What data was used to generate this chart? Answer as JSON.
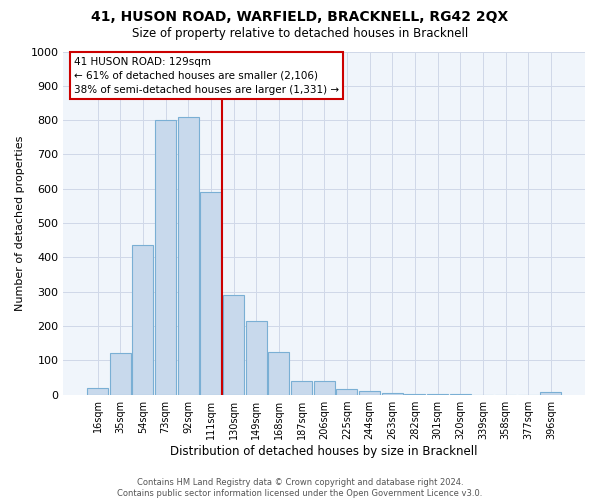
{
  "title": "41, HUSON ROAD, WARFIELD, BRACKNELL, RG42 2QX",
  "subtitle": "Size of property relative to detached houses in Bracknell",
  "xlabel": "Distribution of detached houses by size in Bracknell",
  "ylabel": "Number of detached properties",
  "bar_labels": [
    "16sqm",
    "35sqm",
    "54sqm",
    "73sqm",
    "92sqm",
    "111sqm",
    "130sqm",
    "149sqm",
    "168sqm",
    "187sqm",
    "206sqm",
    "225sqm",
    "244sqm",
    "263sqm",
    "282sqm",
    "301sqm",
    "320sqm",
    "339sqm",
    "358sqm",
    "377sqm",
    "396sqm"
  ],
  "bar_heights": [
    18,
    120,
    435,
    800,
    810,
    590,
    290,
    215,
    125,
    40,
    40,
    15,
    10,
    5,
    3,
    2,
    1,
    0,
    0,
    0,
    7
  ],
  "bar_color": "#c8d9ec",
  "bar_edge_color": "#7aafd4",
  "vline_pos": 5.5,
  "vline_color": "#cc0000",
  "annotation_title": "41 HUSON ROAD: 129sqm",
  "annotation_line1": "← 61% of detached houses are smaller (2,106)",
  "annotation_line2": "38% of semi-detached houses are larger (1,331) →",
  "annotation_box_facecolor": "#ffffff",
  "annotation_box_edgecolor": "#cc0000",
  "ylim": [
    0,
    1000
  ],
  "yticks": [
    0,
    100,
    200,
    300,
    400,
    500,
    600,
    700,
    800,
    900,
    1000
  ],
  "grid_color": "#d0d8e8",
  "footer1": "Contains HM Land Registry data © Crown copyright and database right 2024.",
  "footer2": "Contains public sector information licensed under the Open Government Licence v3.0.",
  "title_fontsize": 10,
  "subtitle_fontsize": 8.5,
  "xlabel_fontsize": 8.5,
  "ylabel_fontsize": 8,
  "xtick_fontsize": 7,
  "ytick_fontsize": 8,
  "footer_fontsize": 6,
  "annot_fontsize": 7.5
}
